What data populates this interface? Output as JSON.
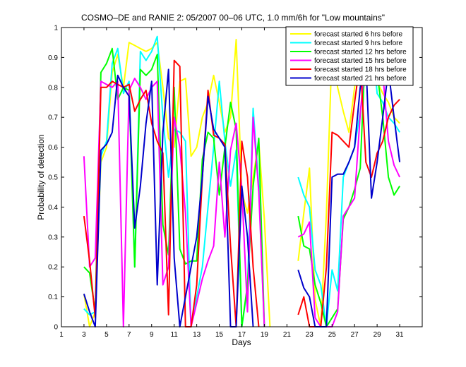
{
  "chart_data": {
    "type": "line",
    "title": "COSMO–DE and RANIE 2: 05/2007 00–06 UTC, 1.0 mm/6h for \"Low mountains\"",
    "xlabel": "Days",
    "ylabel": "Probability of detection",
    "xlim": [
      1,
      33
    ],
    "ylim": [
      0,
      1
    ],
    "xticks": [
      1,
      3,
      5,
      7,
      9,
      11,
      13,
      15,
      17,
      19,
      21,
      23,
      25,
      27,
      29,
      31
    ],
    "yticks": [
      0,
      0.1,
      0.2,
      0.3,
      0.4,
      0.5,
      0.6,
      0.7,
      0.8,
      0.9,
      1
    ],
    "ytick_labels": [
      "0",
      "0.1",
      "0.2",
      "0.3",
      "0.4",
      "0.5",
      "0.6",
      "0.7",
      "0.8",
      "0.9",
      "1"
    ],
    "legend_position": "top-right",
    "grid": false,
    "series": [
      {
        "name": "forecast started 6 hrs before",
        "color": "#ffff00",
        "points": [
          [
            3,
            0.11
          ],
          [
            3.5,
            0.0
          ],
          [
            4,
            0.05
          ],
          [
            4.5,
            0.55
          ],
          [
            5,
            0.6
          ],
          [
            5.5,
            0.85
          ],
          [
            6,
            0.91
          ],
          [
            6.5,
            0.8
          ],
          [
            7,
            0.95
          ],
          [
            7.5,
            0.94
          ],
          [
            8,
            0.93
          ],
          [
            8.5,
            0.92
          ],
          [
            9,
            0.93
          ],
          [
            9.5,
            0.95
          ],
          [
            10,
            0.8
          ],
          [
            10.5,
            0.63
          ],
          [
            11,
            0.6
          ],
          [
            11.5,
            0.82
          ],
          [
            12,
            0.83
          ],
          [
            12.5,
            0.57
          ],
          [
            13,
            0.6
          ],
          [
            13.5,
            0.7
          ],
          [
            14,
            0.75
          ],
          [
            14.5,
            0.84
          ],
          [
            15,
            0.75
          ],
          [
            15.5,
            0.65
          ],
          [
            16,
            0.7
          ],
          [
            16.5,
            0.96
          ],
          [
            17,
            0.45
          ],
          [
            17.5,
            0.38
          ],
          [
            18,
            0.5
          ],
          [
            18.5,
            0.62
          ],
          [
            19,
            0.36
          ],
          [
            19.5,
            0.0
          ],
          null,
          [
            22,
            0.22
          ],
          [
            22.5,
            0.38
          ],
          [
            23,
            0.53
          ],
          [
            23.5,
            0.09
          ],
          [
            24,
            0.0
          ],
          [
            24.5,
            0.38
          ],
          [
            25,
            0.93
          ],
          [
            25.5,
            0.8
          ],
          [
            26,
            0.72
          ],
          [
            26.5,
            0.65
          ],
          [
            27,
            0.8
          ],
          [
            27.5,
            0.93
          ],
          [
            28,
            0.97
          ],
          [
            28.5,
            0.99
          ],
          [
            29,
            0.82
          ],
          [
            29.5,
            0.78
          ],
          [
            30,
            0.75
          ],
          [
            30.5,
            0.7
          ],
          [
            31,
            0.68
          ]
        ]
      },
      {
        "name": "forecast started 9 hrs before",
        "color": "#00ffff",
        "points": [
          [
            3,
            0.06
          ],
          [
            3.5,
            0.04
          ],
          [
            4,
            0.05
          ],
          [
            4.5,
            0.57
          ],
          [
            5,
            0.62
          ],
          [
            5.5,
            0.88
          ],
          [
            6,
            0.93
          ],
          [
            6.5,
            0.78
          ],
          [
            7,
            0.82
          ],
          [
            7.5,
            0.2
          ],
          [
            8,
            0.92
          ],
          [
            8.5,
            0.89
          ],
          [
            9,
            0.92
          ],
          [
            9.5,
            0.97
          ],
          [
            10,
            0.7
          ],
          [
            10.5,
            0.5
          ],
          [
            11,
            0.66
          ],
          [
            11.5,
            0.65
          ],
          [
            12,
            0.62
          ],
          [
            12.5,
            0.0
          ],
          [
            13,
            0.1
          ],
          [
            13.5,
            0.2
          ],
          [
            14,
            0.4
          ],
          [
            14.5,
            0.6
          ],
          [
            15,
            0.82
          ],
          [
            15.5,
            0.62
          ],
          [
            16,
            0.47
          ],
          [
            16.5,
            0.59
          ],
          [
            17,
            0.0
          ],
          [
            17.5,
            0.13
          ],
          [
            18,
            0.73
          ],
          [
            18.5,
            0.47
          ],
          [
            19,
            0.0
          ],
          null,
          [
            22,
            0.5
          ],
          [
            22.5,
            0.44
          ],
          [
            23,
            0.4
          ],
          [
            23.5,
            0.19
          ],
          [
            24,
            0.14
          ],
          [
            24.5,
            0.0
          ],
          [
            25,
            0.19
          ],
          [
            25.5,
            0.12
          ],
          [
            26,
            0.5
          ],
          [
            26.5,
            0.55
          ],
          [
            27,
            0.6
          ],
          [
            27.5,
            0.72
          ],
          [
            28,
            0.85
          ],
          [
            28.5,
            0.99
          ],
          [
            29,
            0.78
          ],
          [
            29.5,
            0.75
          ],
          [
            30,
            0.7
          ],
          [
            30.5,
            0.68
          ],
          [
            31,
            0.65
          ]
        ]
      },
      {
        "name": "forecast started 12 hrs before",
        "color": "#00ff00",
        "points": [
          [
            3,
            0.2
          ],
          [
            3.5,
            0.18
          ],
          [
            4,
            0.05
          ],
          [
            4.5,
            0.85
          ],
          [
            5,
            0.88
          ],
          [
            5.5,
            0.93
          ],
          [
            6,
            0.76
          ],
          [
            6.5,
            0.8
          ],
          [
            7,
            0.79
          ],
          [
            7.5,
            0.2
          ],
          [
            8,
            0.86
          ],
          [
            8.5,
            0.84
          ],
          [
            9,
            0.86
          ],
          [
            9.5,
            0.91
          ],
          [
            10,
            0.34
          ],
          [
            10.5,
            0.24
          ],
          [
            11,
            0.8
          ],
          [
            11.5,
            0.26
          ],
          [
            12,
            0.21
          ],
          [
            12.5,
            0.22
          ],
          [
            13,
            0.22
          ],
          [
            13.5,
            0.56
          ],
          [
            14,
            0.65
          ],
          [
            14.5,
            0.63
          ],
          [
            15,
            0.44
          ],
          [
            15.5,
            0.6
          ],
          [
            16,
            0.75
          ],
          [
            16.5,
            0.66
          ],
          [
            17,
            0.0
          ],
          [
            17.5,
            0.14
          ],
          [
            18,
            0.47
          ],
          [
            18.5,
            0.63
          ],
          [
            19,
            0.0
          ],
          null,
          [
            22,
            0.37
          ],
          [
            22.5,
            0.27
          ],
          [
            23,
            0.26
          ],
          [
            23.5,
            0.14
          ],
          [
            24,
            0.08
          ],
          [
            24.5,
            0.0
          ],
          [
            25,
            0.03
          ],
          [
            25.5,
            0.06
          ],
          [
            26,
            0.36
          ],
          [
            26.5,
            0.4
          ],
          [
            27,
            0.46
          ],
          [
            27.5,
            0.53
          ],
          [
            28,
            0.97
          ],
          [
            28.5,
            0.9
          ],
          [
            29,
            0.85
          ],
          [
            29.5,
            0.7
          ],
          [
            30,
            0.5
          ],
          [
            30.5,
            0.44
          ],
          [
            31,
            0.47
          ]
        ]
      },
      {
        "name": "forecast started 15 hrs before",
        "color": "#ff00ff",
        "points": [
          [
            3,
            0.57
          ],
          [
            3.5,
            0.2
          ],
          [
            4,
            0.23
          ],
          [
            4.5,
            0.82
          ],
          [
            5,
            0.81
          ],
          [
            5.5,
            0.8
          ],
          [
            6,
            0.82
          ],
          [
            6.5,
            0.0
          ],
          [
            7,
            0.79
          ],
          [
            7.5,
            0.83
          ],
          [
            8,
            0.8
          ],
          [
            8.5,
            0.76
          ],
          [
            9,
            0.8
          ],
          [
            9.5,
            0.82
          ],
          [
            10,
            0.14
          ],
          [
            10.5,
            0.2
          ],
          [
            11,
            0.7
          ],
          [
            11.5,
            0.6
          ],
          [
            12,
            0.38
          ],
          [
            12.5,
            0.0
          ],
          [
            13,
            0.08
          ],
          [
            13.5,
            0.16
          ],
          [
            14,
            0.22
          ],
          [
            14.5,
            0.27
          ],
          [
            15,
            0.55
          ],
          [
            15.5,
            0.3
          ],
          [
            16,
            0.59
          ],
          [
            16.5,
            0.68
          ],
          [
            17,
            0.46
          ],
          [
            17.5,
            0.05
          ],
          [
            18,
            0.7
          ],
          [
            18.5,
            0.45
          ],
          [
            19,
            0.0
          ],
          null,
          [
            22,
            0.3
          ],
          [
            22.5,
            0.31
          ],
          [
            23,
            0.35
          ],
          [
            23.5,
            0.03
          ],
          [
            24,
            0.0
          ],
          [
            24.5,
            0.0
          ],
          [
            25,
            0.0
          ],
          [
            25.5,
            0.05
          ],
          [
            26,
            0.37
          ],
          [
            26.5,
            0.4
          ],
          [
            27,
            0.43
          ],
          [
            27.5,
            0.71
          ],
          [
            28,
            0.92
          ],
          [
            28.5,
            0.89
          ],
          [
            29,
            0.87
          ],
          [
            29.5,
            0.85
          ],
          [
            30,
            0.62
          ],
          [
            30.5,
            0.54
          ],
          [
            31,
            0.5
          ]
        ]
      },
      {
        "name": "forecast started 18 hrs before",
        "color": "#ff0000",
        "points": [
          [
            3,
            0.37
          ],
          [
            3.5,
            0.22
          ],
          [
            4,
            0.03
          ],
          [
            4.5,
            0.8
          ],
          [
            5,
            0.8
          ],
          [
            5.5,
            0.82
          ],
          [
            6,
            0.81
          ],
          [
            6.5,
            0.8
          ],
          [
            7,
            0.81
          ],
          [
            7.5,
            0.72
          ],
          [
            8,
            0.76
          ],
          [
            8.5,
            0.79
          ],
          [
            9,
            0.68
          ],
          [
            9.5,
            0.62
          ],
          [
            10,
            0.58
          ],
          [
            10.5,
            0.04
          ],
          [
            11,
            0.89
          ],
          [
            11.5,
            0.87
          ],
          [
            12,
            0.0
          ],
          [
            12.5,
            0.0
          ],
          [
            13,
            0.14
          ],
          [
            13.5,
            0.5
          ],
          [
            14,
            0.79
          ],
          [
            14.5,
            0.64
          ],
          [
            15,
            0.63
          ],
          [
            15.5,
            0.61
          ],
          [
            16,
            0.27
          ],
          [
            16.5,
            0.0
          ],
          [
            17,
            0.62
          ],
          [
            17.5,
            0.5
          ],
          [
            18,
            0.2
          ],
          [
            18.5,
            0.0
          ],
          null,
          [
            22,
            0.04
          ],
          [
            22.5,
            0.1
          ],
          [
            23,
            0.0
          ],
          [
            23.5,
            0.0
          ],
          [
            24,
            0.0
          ],
          [
            24.5,
            0.2
          ],
          [
            25,
            0.65
          ],
          [
            25.5,
            0.64
          ],
          [
            26,
            0.62
          ],
          [
            26.5,
            0.6
          ],
          [
            27,
            0.75
          ],
          [
            27.5,
            0.89
          ],
          [
            28,
            0.55
          ],
          [
            28.5,
            0.5
          ],
          [
            29,
            0.58
          ],
          [
            29.5,
            0.62
          ],
          [
            30,
            0.7
          ],
          [
            30.5,
            0.74
          ],
          [
            31,
            0.76
          ]
        ]
      },
      {
        "name": "forecast started 21 hrs before",
        "color": "#0000cc",
        "points": [
          [
            3,
            0.11
          ],
          [
            3.5,
            0.05
          ],
          [
            4,
            0.0
          ],
          [
            4.5,
            0.59
          ],
          [
            5,
            0.61
          ],
          [
            5.5,
            0.65
          ],
          [
            6,
            0.84
          ],
          [
            6.5,
            0.8
          ],
          [
            7,
            0.77
          ],
          [
            7.5,
            0.33
          ],
          [
            8,
            0.47
          ],
          [
            8.5,
            0.68
          ],
          [
            9,
            0.82
          ],
          [
            9.5,
            0.14
          ],
          [
            10,
            0.65
          ],
          [
            10.5,
            0.86
          ],
          [
            11,
            0.23
          ],
          [
            11.5,
            0.0
          ],
          [
            12,
            0.1
          ],
          [
            12.5,
            0.2
          ],
          [
            13,
            0.3
          ],
          [
            13.5,
            0.5
          ],
          [
            14,
            0.77
          ],
          [
            14.5,
            0.66
          ],
          [
            15,
            0.63
          ],
          [
            15.5,
            0.6
          ],
          [
            16,
            0.0
          ],
          [
            16.5,
            0.0
          ],
          [
            17,
            0.47
          ],
          [
            17.5,
            0.3
          ],
          [
            18,
            0.0
          ],
          null,
          [
            22,
            0.19
          ],
          [
            22.5,
            0.13
          ],
          [
            23,
            0.1
          ],
          [
            23.5,
            0.0
          ],
          [
            24,
            0.0
          ],
          [
            24.5,
            0.0
          ],
          [
            25,
            0.5
          ],
          [
            25.5,
            0.51
          ],
          [
            26,
            0.51
          ],
          [
            26.5,
            0.55
          ],
          [
            27,
            0.6
          ],
          [
            27.5,
            0.8
          ],
          [
            28,
            0.89
          ],
          [
            28.5,
            0.43
          ],
          [
            29,
            0.55
          ],
          [
            29.5,
            0.7
          ],
          [
            30,
            0.86
          ],
          [
            30.5,
            0.7
          ],
          [
            31,
            0.55
          ]
        ]
      }
    ]
  }
}
